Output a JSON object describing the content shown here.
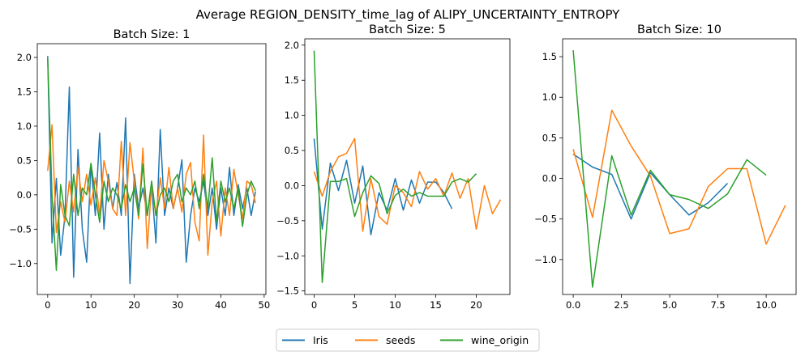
{
  "figure": {
    "title": "Average REGION_DENSITY_time_lag of ALIPY_UNCERTAINTY_ENTROPY"
  },
  "colors": {
    "Iris": "#1f77b4",
    "seeds": "#ff7f0e",
    "wine_origin": "#2ca02c"
  },
  "legend": {
    "placement": "bottom-center",
    "entries": [
      "Iris",
      "seeds",
      "wine_origin"
    ]
  },
  "chart_data": [
    {
      "type": "line",
      "title": "Batch Size: 1",
      "xlim": [
        -2.4,
        50.4
      ],
      "ylim": [
        -1.45,
        2.2
      ],
      "xticks": [
        0,
        10,
        20,
        30,
        40,
        50
      ],
      "xtick_labels": [
        "0",
        "10",
        "20",
        "30",
        "40",
        "50"
      ],
      "yticks": [
        -1.0,
        -0.5,
        0.0,
        0.5,
        1.0,
        1.5,
        2.0
      ],
      "ytick_labels": [
        "−1.0",
        "−0.5",
        "0.0",
        "0.5",
        "1.0",
        "1.5",
        "2.0"
      ],
      "series": [
        {
          "name": "Iris",
          "x": [
            0,
            1,
            2,
            3,
            4,
            5,
            6,
            7,
            8,
            9,
            10,
            11,
            12,
            13,
            14,
            15,
            16,
            17,
            18,
            19,
            20,
            21,
            22,
            23,
            24,
            25,
            26,
            27,
            28,
            29,
            30,
            31,
            32,
            33,
            34,
            35,
            36,
            37,
            38,
            39,
            40,
            41,
            42,
            43,
            44,
            45,
            46,
            47,
            48
          ],
          "y": [
            2.02,
            -0.7,
            0.24,
            -0.88,
            -0.3,
            1.57,
            -1.2,
            0.66,
            -0.5,
            -0.98,
            0.45,
            -0.3,
            0.9,
            -0.5,
            0.3,
            -0.2,
            0.18,
            -0.3,
            1.12,
            -1.29,
            0.3,
            -0.2,
            0.1,
            -0.3,
            0.15,
            -0.7,
            0.95,
            -0.3,
            0.1,
            -0.2,
            0.1,
            0.51,
            -0.98,
            -0.3,
            0.1,
            -0.1,
            0.2,
            -0.3,
            0.1,
            -0.5,
            0.1,
            -0.3,
            0.4,
            -0.3,
            0.15,
            -0.2,
            0.1,
            -0.3,
            0.05
          ]
        },
        {
          "name": "seeds",
          "x": [
            0,
            1,
            2,
            3,
            4,
            5,
            6,
            7,
            8,
            9,
            10,
            11,
            12,
            13,
            14,
            15,
            16,
            17,
            18,
            19,
            20,
            21,
            22,
            23,
            24,
            25,
            26,
            27,
            28,
            29,
            30,
            31,
            32,
            33,
            34,
            35,
            36,
            37,
            38,
            39,
            40,
            41,
            42,
            43,
            44,
            45,
            46,
            47,
            48
          ],
          "y": [
            0.35,
            1.02,
            -0.55,
            -0.1,
            -0.4,
            0.2,
            -0.25,
            0.4,
            -0.1,
            0.3,
            -0.15,
            0.25,
            -0.3,
            0.5,
            0.2,
            -0.2,
            -0.3,
            0.78,
            -0.3,
            0.76,
            0.2,
            -0.35,
            0.68,
            -0.78,
            0.15,
            -0.3,
            0.25,
            -0.2,
            0.4,
            -0.2,
            0.1,
            -0.25,
            0.3,
            0.47,
            -0.4,
            -0.67,
            0.87,
            -0.88,
            -0.1,
            0.2,
            -0.6,
            0.1,
            -0.3,
            0.37,
            0.0,
            -0.35,
            0.2,
            0.15,
            -0.12
          ]
        },
        {
          "name": "wine_origin",
          "x": [
            0,
            1,
            2,
            3,
            4,
            5,
            6,
            7,
            8,
            9,
            10,
            11,
            12,
            13,
            14,
            15,
            16,
            17,
            18,
            19,
            20,
            21,
            22,
            23,
            24,
            25,
            26,
            27,
            28,
            29,
            30,
            31,
            32,
            33,
            34,
            35,
            36,
            37,
            38,
            39,
            40,
            41,
            42,
            43,
            44,
            45,
            46,
            47,
            48
          ],
          "y": [
            1.99,
            0.0,
            -1.1,
            0.15,
            -0.3,
            -0.45,
            0.3,
            -0.3,
            0.1,
            0.0,
            0.46,
            0.0,
            -0.4,
            0.2,
            -0.1,
            0.1,
            0.0,
            -0.2,
            0.15,
            -0.1,
            0.1,
            -0.3,
            0.45,
            -0.3,
            0.2,
            -0.3,
            0.0,
            0.1,
            -0.1,
            0.2,
            0.3,
            -0.1,
            0.1,
            0.0,
            0.2,
            -0.2,
            0.3,
            -0.2,
            0.54,
            -0.4,
            0.2,
            -0.1,
            0.1,
            -0.2,
            0.1,
            -0.46,
            0.0,
            0.2,
            0.06
          ]
        }
      ]
    },
    {
      "type": "line",
      "title": "Batch Size: 5",
      "xlim": [
        -1.15,
        24.15
      ],
      "ylim": [
        -1.55,
        2.09
      ],
      "xticks": [
        0,
        5,
        10,
        15,
        20
      ],
      "xtick_labels": [
        "0",
        "5",
        "10",
        "15",
        "20"
      ],
      "yticks": [
        -1.5,
        -1.0,
        -0.5,
        0.0,
        0.5,
        1.0,
        1.5,
        2.0
      ],
      "ytick_labels": [
        "−1.5",
        "−1.0",
        "−0.5",
        "0.0",
        "0.5",
        "1.0",
        "1.5",
        "2.0"
      ],
      "series": [
        {
          "name": "Iris",
          "x": [
            0,
            1,
            2,
            3,
            4,
            5,
            6,
            7,
            8,
            9,
            10,
            11,
            12,
            13,
            14,
            15,
            16,
            17
          ],
          "y": [
            0.67,
            -0.62,
            0.32,
            -0.07,
            0.36,
            -0.25,
            0.28,
            -0.7,
            -0.1,
            -0.35,
            0.1,
            -0.35,
            0.08,
            -0.25,
            0.05,
            0.05,
            -0.1,
            -0.33
          ]
        },
        {
          "name": "seeds",
          "x": [
            0,
            1,
            2,
            3,
            4,
            5,
            6,
            7,
            8,
            9,
            10,
            11,
            12,
            13,
            14,
            15,
            16,
            17,
            18,
            19,
            20,
            21,
            22,
            23
          ],
          "y": [
            0.2,
            -0.15,
            0.2,
            0.41,
            0.46,
            0.67,
            -0.65,
            0.1,
            -0.44,
            -0.55,
            0.0,
            -0.1,
            -0.3,
            0.2,
            -0.05,
            0.1,
            -0.15,
            0.18,
            -0.18,
            0.1,
            -0.62,
            0.0,
            -0.4,
            -0.2
          ]
        },
        {
          "name": "wine_origin",
          "x": [
            0,
            1,
            2,
            3,
            4,
            5,
            6,
            7,
            8,
            9,
            10,
            11,
            12,
            13,
            14,
            15,
            16,
            17,
            18,
            19,
            20
          ],
          "y": [
            1.92,
            -1.38,
            0.06,
            0.06,
            0.1,
            -0.44,
            -0.1,
            0.14,
            0.03,
            -0.4,
            -0.14,
            -0.05,
            -0.15,
            -0.1,
            -0.15,
            -0.15,
            -0.15,
            0.05,
            0.1,
            0.05,
            0.17
          ]
        }
      ]
    },
    {
      "type": "line",
      "title": "Batch Size: 10",
      "xlim": [
        -0.55,
        11.55
      ],
      "ylim": [
        -1.43,
        1.72
      ],
      "xticks": [
        0.0,
        2.5,
        5.0,
        7.5,
        10.0
      ],
      "xtick_labels": [
        "0.0",
        "2.5",
        "5.0",
        "7.5",
        "10.0"
      ],
      "yticks": [
        -1.0,
        -0.5,
        0.0,
        0.5,
        1.0,
        1.5
      ],
      "ytick_labels": [
        "−1.0",
        "−0.5",
        "0.0",
        "0.5",
        "1.0",
        "1.5"
      ],
      "series": [
        {
          "name": "Iris",
          "x": [
            0,
            1,
            2,
            3,
            4,
            5,
            6,
            7,
            8
          ],
          "y": [
            0.3,
            0.14,
            0.05,
            -0.5,
            0.07,
            -0.2,
            -0.45,
            -0.3,
            -0.06
          ]
        },
        {
          "name": "seeds",
          "x": [
            0,
            1,
            2,
            3,
            4,
            5,
            6,
            7,
            8,
            9,
            10,
            11
          ],
          "y": [
            0.36,
            -0.48,
            0.84,
            0.4,
            0.03,
            -0.68,
            -0.62,
            -0.1,
            0.12,
            0.12,
            -0.81,
            -0.33
          ]
        },
        {
          "name": "wine_origin",
          "x": [
            0,
            1,
            2,
            3,
            4,
            5,
            6,
            7,
            8,
            9,
            10
          ],
          "y": [
            1.58,
            -1.34,
            0.28,
            -0.45,
            0.1,
            -0.2,
            -0.26,
            -0.37,
            -0.19,
            0.23,
            0.04
          ]
        }
      ]
    }
  ]
}
